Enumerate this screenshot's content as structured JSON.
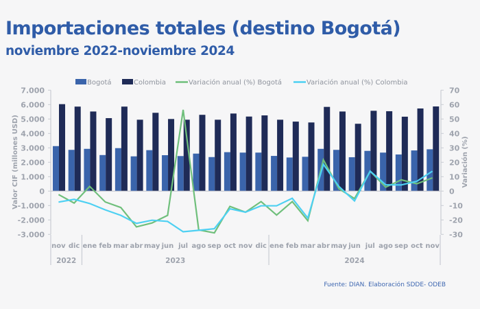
{
  "header": {
    "title": "Importaciones totales (destino Bogotá)",
    "subtitle": "noviembre 2022-noviembre 2024"
  },
  "footer": {
    "source": "Fuente: DIAN. Elaboración SDDE- ODEB"
  },
  "chart_data": {
    "type": "bar",
    "title": "Importaciones totales (destino Bogotá)",
    "subtitle": "noviembre 2022-noviembre 2024",
    "ylabel": "Valor CIF (millones USD)",
    "y2label": "Variación (%)",
    "ylim": [
      -3000,
      7000
    ],
    "y2lim": [
      -30,
      70
    ],
    "yticks": [
      "7.000",
      "6.000",
      "5.000",
      "4.000",
      "3.000",
      "2.000",
      "1.000",
      "0",
      "-1.000",
      "-2.000",
      "-3.000"
    ],
    "y2ticks": [
      "70",
      "60",
      "50",
      "40",
      "30",
      "20",
      "10",
      "0",
      "-10",
      "-20",
      "-30"
    ],
    "categories": [
      "nov",
      "dic",
      "ene",
      "feb",
      "mar",
      "abr",
      "may",
      "jun",
      "jul",
      "ago",
      "sep",
      "oct",
      "nov",
      "dic",
      "ene",
      "feb",
      "mar",
      "abr",
      "may",
      "jun",
      "jul",
      "ago",
      "sep",
      "oct",
      "nov"
    ],
    "year_groups": [
      {
        "label": "2022",
        "count": 2
      },
      {
        "label": "2023",
        "count": 12
      },
      {
        "label": "2024",
        "count": 11
      }
    ],
    "legend_position": "top",
    "grid": false,
    "series": [
      {
        "name": "Bogotá",
        "kind": "bar",
        "axis": "left",
        "color": "#3a64ab",
        "values": [
          3120,
          2860,
          2930,
          2500,
          2980,
          2410,
          2840,
          2490,
          2430,
          2600,
          2360,
          2700,
          2670,
          2670,
          2440,
          2330,
          2380,
          2930,
          2860,
          2350,
          2790,
          2670,
          2540,
          2820,
          2900
        ]
      },
      {
        "name": "Colombia",
        "kind": "bar",
        "axis": "left",
        "color": "#1f2b57",
        "values": [
          6030,
          5860,
          5520,
          5060,
          5860,
          4950,
          5430,
          5000,
          4950,
          5290,
          4950,
          5380,
          5170,
          5250,
          4950,
          4820,
          4760,
          5840,
          5520,
          4670,
          5570,
          5540,
          5160,
          5730,
          5870
        ]
      },
      {
        "name": "Variación anual (%) Bogotá",
        "kind": "line",
        "axis": "right",
        "color": "#6fbf7b",
        "values": [
          -2.4,
          -8.3,
          3.3,
          -7.5,
          -11.4,
          -24.8,
          -22.1,
          -16.8,
          56.4,
          -26.9,
          -29.0,
          -10.6,
          -14.6,
          -7.3,
          -16.6,
          -7.3,
          -20.5,
          21.7,
          1.6,
          -5.2,
          13.8,
          2.7,
          7.8,
          5.1,
          9.2
        ]
      },
      {
        "name": "Variación anual (%) Colombia",
        "kind": "line",
        "axis": "right",
        "color": "#4dd0f2",
        "values": [
          -7.6,
          -5.7,
          -8.6,
          -13.0,
          -16.8,
          -22.4,
          -20.2,
          -21.0,
          -28.2,
          -27.2,
          -26.1,
          -12.3,
          -14.6,
          -10.2,
          -10.2,
          -5.0,
          -18.7,
          18.6,
          3.2,
          -6.8,
          13.8,
          4.4,
          4.3,
          6.8,
          13.8
        ]
      }
    ]
  }
}
